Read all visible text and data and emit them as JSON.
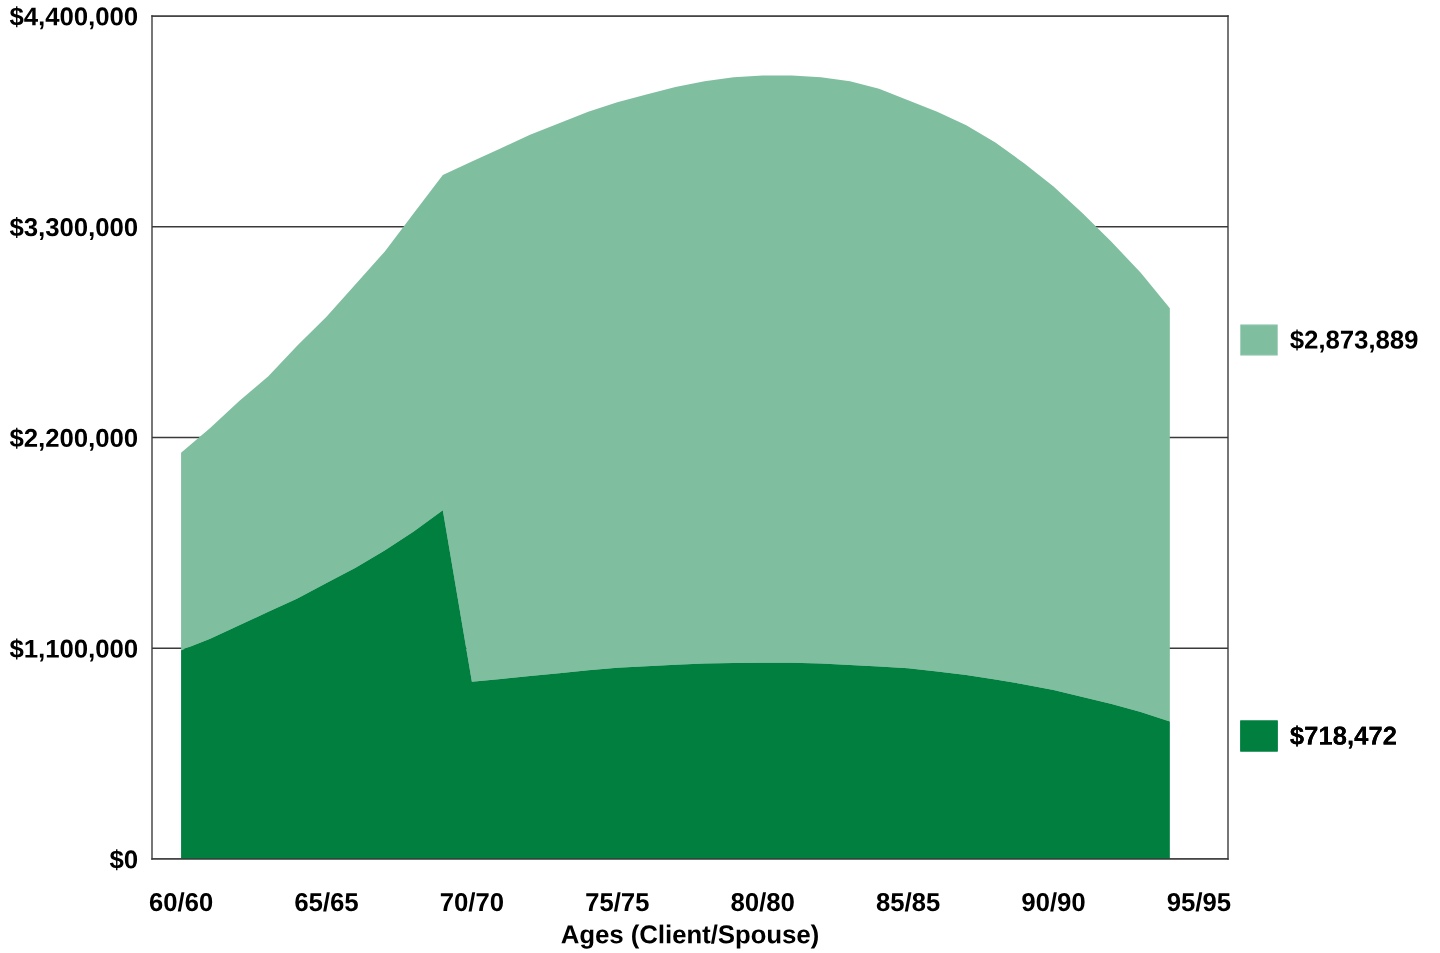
{
  "chart_data": {
    "type": "area",
    "xlabel": "Ages (Client/Spouse)",
    "categories": [
      "60/60",
      null,
      null,
      null,
      null,
      "65/65",
      null,
      null,
      null,
      null,
      "70/70",
      null,
      null,
      null,
      null,
      "75/75",
      null,
      null,
      null,
      null,
      "80/80",
      null,
      null,
      null,
      null,
      "85/85",
      null,
      null,
      null,
      null,
      "90/90",
      null,
      null,
      null,
      null,
      "95/95"
    ],
    "ylim": [
      0,
      4400000
    ],
    "yticks": [
      {
        "value": 0,
        "label": "$0"
      },
      {
        "value": 1100000,
        "label": "$1,100,000"
      },
      {
        "value": 2200000,
        "label": "$2,200,000"
      },
      {
        "value": 3300000,
        "label": "$3,300,000"
      },
      {
        "value": 4400000,
        "label": "$4,400,000"
      }
    ],
    "grid": "y",
    "legend": "right",
    "series": [
      {
        "name": "$2,873,889",
        "color": "#80bea0",
        "values": [
          2120000,
          2250000,
          2390000,
          2520000,
          2680000,
          2830000,
          3000000,
          3170000,
          3370000,
          3570000,
          3640000,
          3710000,
          3780000,
          3840000,
          3900000,
          3950000,
          3990000,
          4030000,
          4060000,
          4080000,
          4090000,
          4090000,
          4080000,
          4060000,
          4020000,
          3960000,
          3900000,
          3830000,
          3740000,
          3630000,
          3510000,
          3370000,
          3220000,
          3060000,
          2874000,
          null
        ]
      },
      {
        "name": "$718,472",
        "color": "#007f3f",
        "values": [
          1090000,
          1150000,
          1220000,
          1290000,
          1360000,
          1440000,
          1520000,
          1610000,
          1710000,
          1820000,
          925000,
          940000,
          955000,
          970000,
          985000,
          998000,
          1006000,
          1014000,
          1020000,
          1023000,
          1024000,
          1024000,
          1020000,
          1013000,
          1005000,
          995000,
          979000,
          960000,
          937000,
          911000,
          882000,
          846000,
          809000,
          767000,
          718000,
          null
        ]
      }
    ]
  }
}
